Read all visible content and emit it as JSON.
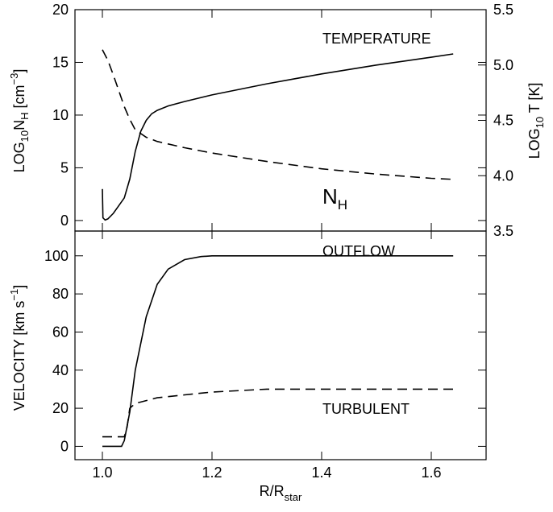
{
  "chart_data": [
    {
      "type": "line",
      "panel": "top",
      "xlim": [
        0.95,
        1.7
      ],
      "ylim_left": [
        -1,
        20
      ],
      "ylim_right": [
        3.5,
        5.5
      ],
      "yticks_left": [
        "0",
        "5",
        "10",
        "15",
        "20"
      ],
      "yticks_right": [
        "3.5",
        "4.0",
        "4.5",
        "5.0",
        "5.5"
      ],
      "ylabel_left": {
        "main": "LOG",
        "sub": "10",
        "mid": "N",
        "sub2": "H",
        "tail": " [cm",
        "sup": "−3",
        "close": "]"
      },
      "ylabel_right": {
        "main": "LOG",
        "sub": "10",
        "tail": " T [K]"
      },
      "annotations": {
        "temperature": "TEMPERATURE",
        "nh_main": "N",
        "nh_sub": "H"
      },
      "series": [
        {
          "axis": "right",
          "style": "solid",
          "x": [
            1.0,
            1.001,
            1.005,
            1.01,
            1.02,
            1.03,
            1.04,
            1.05,
            1.06,
            1.07,
            1.08,
            1.09,
            1.1,
            1.12,
            1.15,
            1.2,
            1.3,
            1.4,
            1.5,
            1.6,
            1.64
          ],
          "y": [
            3.88,
            3.62,
            3.6,
            3.61,
            3.66,
            3.73,
            3.8,
            3.97,
            4.22,
            4.4,
            4.5,
            4.56,
            4.59,
            4.63,
            4.67,
            4.73,
            4.83,
            4.92,
            5.0,
            5.07,
            5.1
          ]
        },
        {
          "axis": "left",
          "style": "dashed",
          "x": [
            1.0,
            1.01,
            1.02,
            1.03,
            1.04,
            1.05,
            1.06,
            1.08,
            1.1,
            1.15,
            1.2,
            1.3,
            1.4,
            1.5,
            1.6,
            1.64
          ],
          "y": [
            16.2,
            15.2,
            13.8,
            12.3,
            10.8,
            9.6,
            8.6,
            7.9,
            7.5,
            6.9,
            6.4,
            5.6,
            4.9,
            4.4,
            4.0,
            3.9
          ]
        }
      ]
    },
    {
      "type": "line",
      "panel": "bottom",
      "xlim": [
        0.95,
        1.7
      ],
      "ylim": [
        -7,
        113
      ],
      "yticks": [
        "0",
        "20",
        "40",
        "60",
        "80",
        "100"
      ],
      "xticks": [
        "1.0",
        "1.2",
        "1.4",
        "1.6"
      ],
      "xlabel": {
        "main": "R/R",
        "sub": "star"
      },
      "ylabel": {
        "main": "VELOCITY [km s",
        "sup": "−1",
        "close": "]"
      },
      "annotations": {
        "outflow": "OUTFLOW",
        "turbulent": "TURBULENT"
      },
      "series": [
        {
          "style": "solid",
          "x": [
            1.0,
            1.02,
            1.035,
            1.04,
            1.05,
            1.06,
            1.08,
            1.1,
            1.12,
            1.15,
            1.18,
            1.2,
            1.3,
            1.4,
            1.5,
            1.6,
            1.64
          ],
          "y": [
            0,
            0,
            0,
            3,
            18,
            40,
            68,
            85,
            93,
            98,
            99.6,
            100,
            100,
            100,
            100,
            100,
            100
          ]
        },
        {
          "style": "dashed",
          "x": [
            1.0,
            1.02,
            1.04,
            1.045,
            1.05,
            1.06,
            1.08,
            1.1,
            1.15,
            1.2,
            1.3,
            1.4,
            1.5,
            1.6,
            1.64
          ],
          "y": [
            5,
            5,
            5,
            10,
            20,
            22.5,
            24,
            25.5,
            27,
            28.5,
            30,
            30,
            30,
            30,
            30
          ]
        }
      ]
    }
  ]
}
